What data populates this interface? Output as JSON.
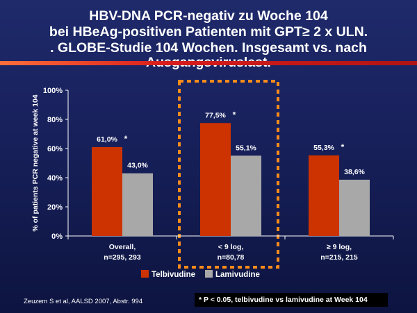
{
  "title": {
    "line1": "HBV-DNA PCR-negativ zu Woche 104",
    "line2": "bei HBeAg-positiven Patienten mit GPT≥ 2 x ULN.",
    "line3": ". GLOBE-Studie 104 Wochen. Insgesamt vs. nach",
    "line4": "Ausgangsviruslast."
  },
  "footer": {
    "reference": "Zeuzem S et al, AALSD 2007, Abstr. 994",
    "footnote": "* P < 0.05, telbivudine vs lamivudine at Week 104"
  },
  "colors": {
    "telbivudine": "#cc3300",
    "lamivudine": "#a8a8a8",
    "highlight_border": "#ff8c1a",
    "background": "#1a2360",
    "title_rule": "#d81c1c"
  },
  "chart_data": {
    "type": "bar",
    "ylabel": "% of patients PCR negative at week 104",
    "ylim": [
      0,
      100
    ],
    "yticks": [
      "0%",
      "20%",
      "40%",
      "60%",
      "80%",
      "100%"
    ],
    "categories": [
      [
        "Overall,",
        "n=295, 293"
      ],
      [
        "< 9 log,",
        "n=80,78"
      ],
      [
        "≥ 9 log,",
        "n=215, 215"
      ]
    ],
    "series": [
      {
        "name": "Telbivudine",
        "values": [
          61.0,
          77.5,
          55.3
        ],
        "labels": [
          "61,0%",
          "77,5%",
          "55,3%"
        ]
      },
      {
        "name": "Lamivudine",
        "values": [
          43.0,
          55.1,
          38.6
        ],
        "labels": [
          "43,0%",
          "55,1%",
          "38,6%"
        ]
      }
    ],
    "significance_marker": "*",
    "significant": [
      true,
      true,
      true
    ],
    "highlighted_category": 1,
    "legend_position": "bottom-center",
    "grid": false
  }
}
